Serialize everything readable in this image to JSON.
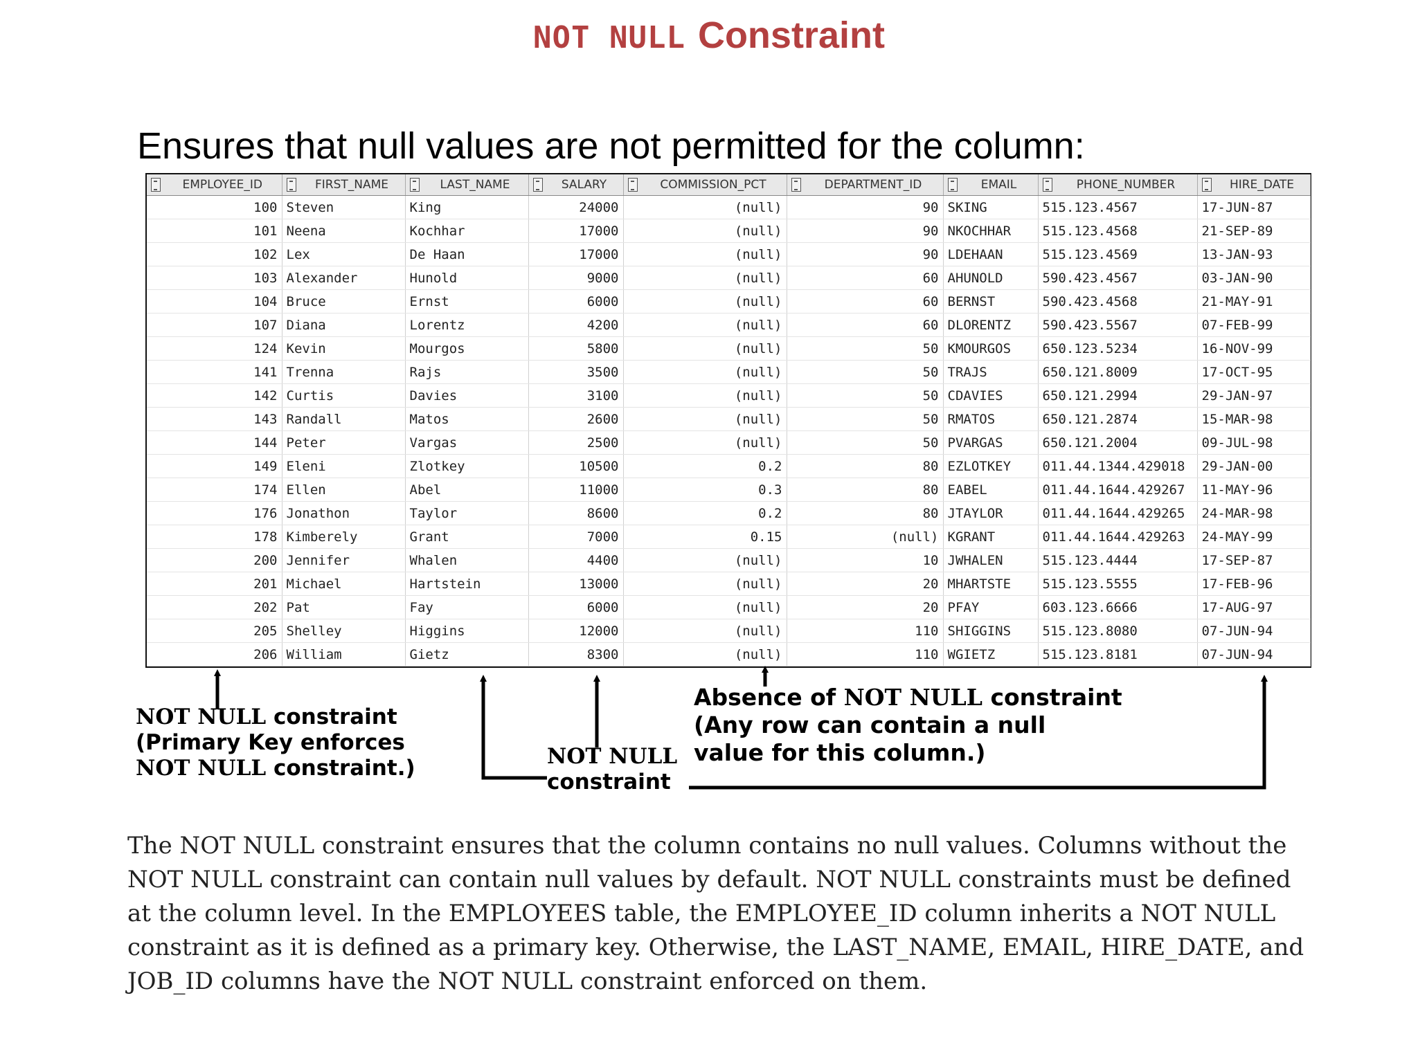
{
  "title": {
    "mono": "NOT NULL",
    "text": "Constraint"
  },
  "subtitle": "Ensures that null values are not permitted for the column:",
  "table": {
    "columns": [
      "EMPLOYEE_ID",
      "FIRST_NAME",
      "LAST_NAME",
      "SALARY",
      "COMMISSION_PCT",
      "DEPARTMENT_ID",
      "EMAIL",
      "PHONE_NUMBER",
      "HIRE_DATE"
    ],
    "rows": [
      [
        "100",
        "Steven",
        "King",
        "24000",
        "(null)",
        "90",
        "SKING",
        "515.123.4567",
        "17-JUN-87"
      ],
      [
        "101",
        "Neena",
        "Kochhar",
        "17000",
        "(null)",
        "90",
        "NKOCHHAR",
        "515.123.4568",
        "21-SEP-89"
      ],
      [
        "102",
        "Lex",
        "De Haan",
        "17000",
        "(null)",
        "90",
        "LDEHAAN",
        "515.123.4569",
        "13-JAN-93"
      ],
      [
        "103",
        "Alexander",
        "Hunold",
        "9000",
        "(null)",
        "60",
        "AHUNOLD",
        "590.423.4567",
        "03-JAN-90"
      ],
      [
        "104",
        "Bruce",
        "Ernst",
        "6000",
        "(null)",
        "60",
        "BERNST",
        "590.423.4568",
        "21-MAY-91"
      ],
      [
        "107",
        "Diana",
        "Lorentz",
        "4200",
        "(null)",
        "60",
        "DLORENTZ",
        "590.423.5567",
        "07-FEB-99"
      ],
      [
        "124",
        "Kevin",
        "Mourgos",
        "5800",
        "(null)",
        "50",
        "KMOURGOS",
        "650.123.5234",
        "16-NOV-99"
      ],
      [
        "141",
        "Trenna",
        "Rajs",
        "3500",
        "(null)",
        "50",
        "TRAJS",
        "650.121.8009",
        "17-OCT-95"
      ],
      [
        "142",
        "Curtis",
        "Davies",
        "3100",
        "(null)",
        "50",
        "CDAVIES",
        "650.121.2994",
        "29-JAN-97"
      ],
      [
        "143",
        "Randall",
        "Matos",
        "2600",
        "(null)",
        "50",
        "RMATOS",
        "650.121.2874",
        "15-MAR-98"
      ],
      [
        "144",
        "Peter",
        "Vargas",
        "2500",
        "(null)",
        "50",
        "PVARGAS",
        "650.121.2004",
        "09-JUL-98"
      ],
      [
        "149",
        "Eleni",
        "Zlotkey",
        "10500",
        "0.2",
        "80",
        "EZLOTKEY",
        "011.44.1344.429018",
        "29-JAN-00"
      ],
      [
        "174",
        "Ellen",
        "Abel",
        "11000",
        "0.3",
        "80",
        "EABEL",
        "011.44.1644.429267",
        "11-MAY-96"
      ],
      [
        "176",
        "Jonathon",
        "Taylor",
        "8600",
        "0.2",
        "80",
        "JTAYLOR",
        "011.44.1644.429265",
        "24-MAR-98"
      ],
      [
        "178",
        "Kimberely",
        "Grant",
        "7000",
        "0.15",
        "(null)",
        "KGRANT",
        "011.44.1644.429263",
        "24-MAY-99"
      ],
      [
        "200",
        "Jennifer",
        "Whalen",
        "4400",
        "(null)",
        "10",
        "JWHALEN",
        "515.123.4444",
        "17-SEP-87"
      ],
      [
        "201",
        "Michael",
        "Hartstein",
        "13000",
        "(null)",
        "20",
        "MHARTSTE",
        "515.123.5555",
        "17-FEB-96"
      ],
      [
        "202",
        "Pat",
        "Fay",
        "6000",
        "(null)",
        "20",
        "PFAY",
        "603.123.6666",
        "17-AUG-97"
      ],
      [
        "205",
        "Shelley",
        "Higgins",
        "12000",
        "(null)",
        "110",
        "SHIGGINS",
        "515.123.8080",
        "07-JUN-94"
      ],
      [
        "206",
        "William",
        "Gietz",
        "8300",
        "(null)",
        "110",
        "WGIETZ",
        "515.123.8181",
        "07-JUN-94"
      ]
    ]
  },
  "callouts": {
    "pk": {
      "mono1": "NOT NULL",
      "text1": " constraint",
      "line2": "(Primary Key enforces",
      "mono3": "NOT NULL",
      "text3": " constraint.)"
    },
    "nn": {
      "mono": "NOT NULL",
      "text": "constraint"
    },
    "absence": {
      "pre": "Absence of ",
      "mono": "NOT NULL",
      "post": " constraint",
      "line2": "(Any row can contain a null",
      "line3": "value for this column.)"
    }
  },
  "paragraph": "The NOT NULL constraint ensures that the column contains no null values. Columns without the NOT NULL constraint can contain null values by default. NOT NULL constraints must be defined at the column level. In the EMPLOYEES table, the EMPLOYEE_ID column inherits a NOT NULL constraint as it is defined as a primary key. Otherwise, the LAST_NAME, EMAIL, HIRE_DATE, and JOB_ID columns have the NOT NULL constraint enforced on them."
}
